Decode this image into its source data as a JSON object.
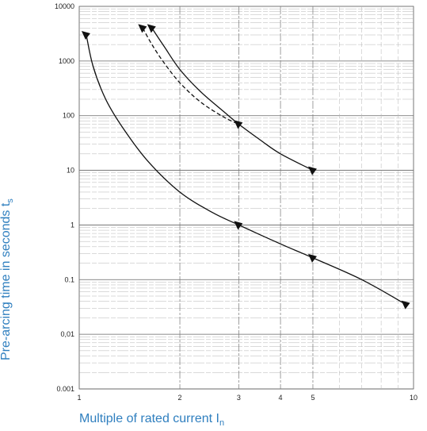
{
  "chart_data": {
    "type": "line",
    "title": "",
    "xlabel": "Multiple of rated current I",
    "xlabel_subscript": "n",
    "ylabel": "Pre-arcing time in seconds t",
    "ylabel_subscript": "s",
    "x_scale": "log",
    "y_scale": "log",
    "xlim": [
      1,
      10
    ],
    "ylim": [
      0.001,
      10000
    ],
    "grid": true,
    "x_ticks": [
      {
        "value": 1,
        "label": "1"
      },
      {
        "value": 2,
        "label": "2"
      },
      {
        "value": 3,
        "label": "3"
      },
      {
        "value": 4,
        "label": "4"
      },
      {
        "value": 5,
        "label": "5"
      },
      {
        "value": 10,
        "label": "10"
      }
    ],
    "y_ticks": [
      {
        "value": 10000,
        "label": "10000"
      },
      {
        "value": 1000,
        "label": "1000"
      },
      {
        "value": 100,
        "label": "100"
      },
      {
        "value": 10,
        "label": "10"
      },
      {
        "value": 1,
        "label": "1"
      },
      {
        "value": 0.1,
        "label": "0.1"
      },
      {
        "value": 0.01,
        "label": "0,01"
      },
      {
        "value": 0.001,
        "label": "0.001"
      }
    ],
    "series": [
      {
        "style": "solid",
        "x": [
          1.05,
          1.1,
          1.2,
          1.35,
          1.6,
          2.0,
          2.5,
          3.0,
          4.0,
          5.0,
          7.0,
          9.5
        ],
        "y": [
          3000,
          800,
          200,
          60,
          15,
          4,
          1.7,
          1.0,
          0.45,
          0.25,
          0.1,
          0.035
        ],
        "markers": [
          {
            "x": 1.05,
            "y": 3000
          },
          {
            "x": 3.0,
            "y": 1.0
          },
          {
            "x": 5.0,
            "y": 0.25
          },
          {
            "x": 9.5,
            "y": 0.035
          }
        ]
      },
      {
        "style": "dashed",
        "x": [
          1.55,
          1.65,
          1.8,
          2.0,
          2.3,
          2.7,
          3.0
        ],
        "y": [
          4000,
          2000,
          900,
          400,
          180,
          95,
          70
        ],
        "markers": [
          {
            "x": 1.55,
            "y": 4000
          }
        ]
      },
      {
        "style": "solid",
        "x": [
          1.65,
          1.8,
          2.0,
          2.3,
          2.7,
          3.0,
          3.5,
          4.0,
          5.0
        ],
        "y": [
          4000,
          1800,
          700,
          280,
          120,
          70,
          35,
          20,
          10
        ],
        "markers": [
          {
            "x": 1.65,
            "y": 4000
          },
          {
            "x": 3.0,
            "y": 70
          },
          {
            "x": 5.0,
            "y": 10
          }
        ]
      }
    ]
  }
}
